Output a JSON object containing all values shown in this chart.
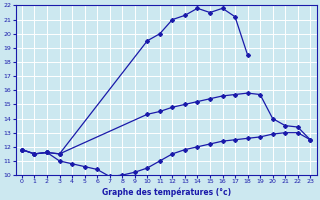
{
  "bg_color": "#cce8f0",
  "grid_color": "#ffffff",
  "line_color": "#1a1aaa",
  "xlabel": "Graphe des températures (°c)",
  "xlim": [
    -0.5,
    23.5
  ],
  "ylim": [
    10,
    22
  ],
  "yticks": [
    10,
    11,
    12,
    13,
    14,
    15,
    16,
    17,
    18,
    19,
    20,
    21,
    22
  ],
  "xticks": [
    0,
    1,
    2,
    3,
    4,
    5,
    6,
    7,
    8,
    9,
    10,
    11,
    12,
    13,
    14,
    15,
    16,
    17,
    18,
    19,
    20,
    21,
    22,
    23
  ],
  "curve_upper_x": [
    0,
    1,
    2,
    3,
    10,
    11,
    12,
    13,
    14,
    15,
    16,
    17,
    18
  ],
  "curve_upper_y": [
    11.8,
    11.5,
    11.6,
    11.5,
    19.5,
    20.0,
    21.0,
    21.3,
    21.8,
    21.5,
    21.8,
    21.2,
    18.5
  ],
  "curve_mid_x": [
    0,
    1,
    2,
    3,
    10,
    11,
    12,
    13,
    14,
    15,
    16,
    17,
    18,
    19,
    20,
    21,
    22,
    23
  ],
  "curve_mid_y": [
    11.8,
    11.5,
    11.6,
    11.5,
    14.3,
    14.5,
    14.8,
    15.0,
    15.2,
    15.4,
    15.6,
    15.7,
    15.8,
    15.7,
    14.0,
    13.5,
    13.4,
    12.5
  ],
  "curve_lower_x": [
    0,
    1,
    2,
    3,
    4,
    5,
    6,
    7,
    8,
    9,
    10,
    11,
    12,
    13,
    14,
    15,
    16,
    17,
    18,
    19,
    20,
    21,
    22,
    23
  ],
  "curve_lower_y": [
    11.8,
    11.5,
    11.6,
    11.0,
    10.8,
    10.6,
    10.4,
    9.9,
    10.0,
    10.2,
    10.5,
    11.0,
    11.5,
    11.8,
    12.0,
    12.2,
    12.4,
    12.5,
    12.6,
    12.7,
    12.9,
    13.0,
    13.0,
    12.5
  ]
}
